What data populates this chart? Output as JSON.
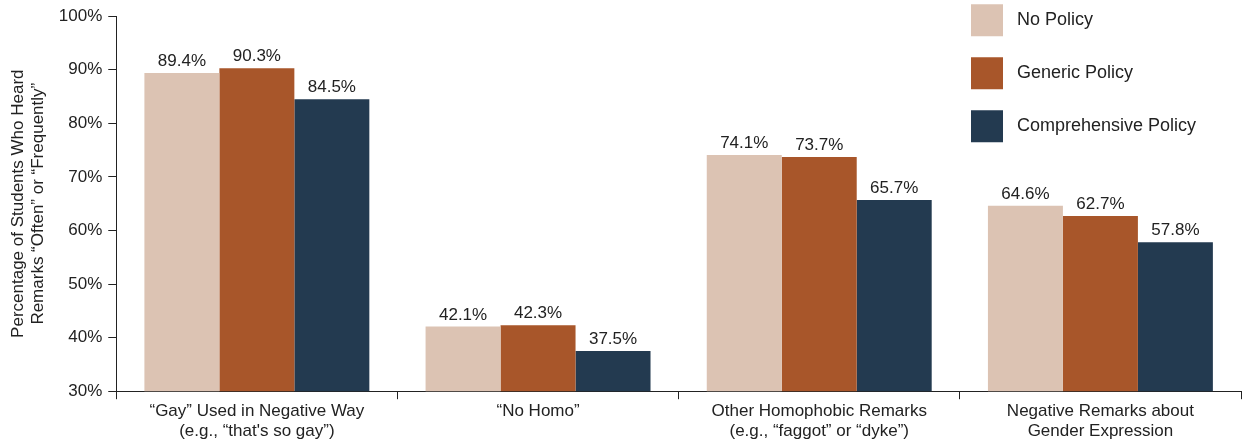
{
  "chart_data": {
    "type": "bar",
    "ylabel": "Percentage of Students Who Heard Remarks “Often” or “Frequently”",
    "categories": [
      "“Gay” Used in Negative Way\n(e.g., “that's so gay”)",
      "“No Homo”",
      "Other Homophobic Remarks\n(e.g., “faggot” or “dyke”)",
      "Negative Remarks about\nGender Expression"
    ],
    "series": [
      {
        "name": "No Policy",
        "color": "#dcc3b3",
        "values": [
          89.4,
          42.1,
          74.1,
          64.6
        ],
        "value_labels": [
          "89.4%",
          "42.1%",
          "74.1%",
          "64.6%"
        ]
      },
      {
        "name": "Generic Policy",
        "color": "#a8562a",
        "values": [
          90.3,
          42.3,
          73.7,
          62.7
        ],
        "value_labels": [
          "90.3%",
          "42.3%",
          "73.7%",
          "62.7%"
        ]
      },
      {
        "name": "Comprehensive Policy",
        "color": "#233a50",
        "values": [
          84.5,
          37.5,
          65.7,
          57.8
        ],
        "value_labels": [
          "84.5%",
          "37.5%",
          "65.7%",
          "57.8%"
        ]
      }
    ],
    "ylim": [
      30,
      100
    ],
    "yticks": [
      {
        "value": 30,
        "label": "30%"
      },
      {
        "value": 40,
        "label": "40%"
      },
      {
        "value": 50,
        "label": "50%"
      },
      {
        "value": 60,
        "label": "60%"
      },
      {
        "value": 70,
        "label": "70%"
      },
      {
        "value": 80,
        "label": "80%"
      },
      {
        "value": 90,
        "label": "90%"
      },
      {
        "value": 100,
        "label": "100%"
      }
    ],
    "grid": false,
    "legend": "top right"
  }
}
